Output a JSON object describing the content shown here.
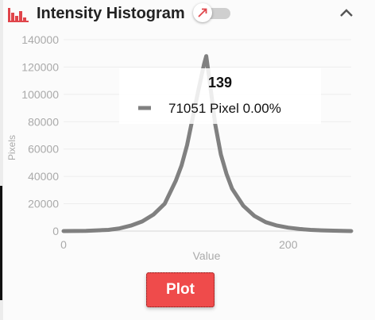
{
  "header": {
    "title": "Intensity Histogram",
    "icon": "histogram-icon",
    "toggle_icon": "arrow-up-right-icon",
    "collapse_icon": "chevron-up-icon",
    "accent_color": "#e0454b"
  },
  "chart_data": {
    "type": "line",
    "title": "",
    "xlabel": "Value",
    "ylabel": "Pixels",
    "xlim": [
      0,
      256
    ],
    "ylim": [
      0,
      140000
    ],
    "x_ticks": [
      0,
      200
    ],
    "y_ticks": [
      0,
      20000,
      40000,
      60000,
      80000,
      100000,
      120000,
      140000
    ],
    "grid": true,
    "line_color": "#808080",
    "series": [
      {
        "x": [
          0,
          20,
          40,
          50,
          60,
          70,
          80,
          90,
          100,
          105,
          110,
          115,
          120,
          125,
          127,
          130,
          135,
          140,
          145,
          150,
          160,
          170,
          180,
          190,
          200,
          210,
          220,
          230,
          240,
          256
        ],
        "values": [
          0,
          200,
          900,
          2000,
          4000,
          7000,
          12000,
          20000,
          37000,
          48000,
          63000,
          83000,
          103000,
          122000,
          128000,
          110000,
          78000,
          56000,
          42000,
          31000,
          18500,
          11000,
          6500,
          4000,
          2500,
          1500,
          900,
          500,
          300,
          0
        ]
      }
    ],
    "tooltip": {
      "x_value": "139",
      "count": "71051",
      "unit": "Pixel",
      "percent": "0.00%"
    }
  },
  "footer": {
    "plot_label": "Plot"
  }
}
